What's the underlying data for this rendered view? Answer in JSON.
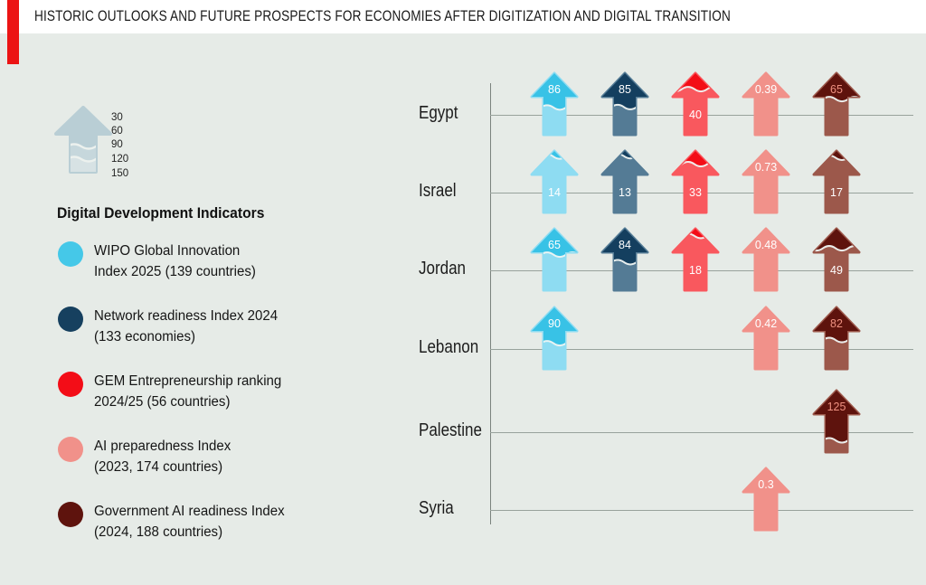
{
  "title": "HISTORIC OUTLOOKS AND FUTURE PROSPECTS FOR ECONOMIES AFTER DIGITIZATION AND DIGITAL TRANSITION",
  "colors": {
    "background": "#e6ebe7",
    "header_background": "#ffffff",
    "accent_red": "#ec1414",
    "axis_line": "#98a29c",
    "legend_arrow": "#b9ced5",
    "legend_arrow_mid": "#c6d7dc",
    "legend_arrow_low": "#d7e2e4"
  },
  "legend": {
    "heading": "Digital Development Indicators",
    "scale_labels": [
      "30",
      "60",
      "90",
      "120",
      "150"
    ],
    "items": [
      {
        "key": "wipo",
        "color": "#45c8e8",
        "line1": "WIPO Global Innovation",
        "line2": "Index 2025 (139 countries)"
      },
      {
        "key": "nri",
        "color": "#16405f",
        "line1": "Network readiness Index 2024",
        "line2": "(133 economies)"
      },
      {
        "key": "gem",
        "color": "#f30d17",
        "line1": "GEM Entrepreneurship ranking",
        "line2": "2024/25 (56 countries)"
      },
      {
        "key": "aipi",
        "color": "#f1918a",
        "line1": "AI preparedness Index",
        "line2": "(2023, 174 countries)"
      },
      {
        "key": "gari",
        "color": "#5e130d",
        "line1": "Government AI readiness Index",
        "line2": "(2024, 188 countries)"
      }
    ]
  },
  "chart_data": {
    "type": "pictogram-arrows",
    "title": "Digital Development Indicators by country",
    "categories": [
      "Egypt",
      "Israel",
      "Jordan",
      "Lebanon",
      "Palestine",
      "Syria"
    ],
    "scale_ticks": [
      30,
      60,
      90,
      120,
      150
    ],
    "legend_position": "left",
    "series": [
      {
        "key": "wipo",
        "name": "WIPO Global Innovation Index 2025 (139 countries)",
        "bright": "#38c2e6",
        "muted": "#8edcf2",
        "label_color_head": "#ffffff",
        "values": [
          86,
          14,
          65,
          90,
          null,
          null
        ],
        "label_pos": [
          "head",
          "line",
          "head",
          "head",
          null,
          null
        ]
      },
      {
        "key": "nri",
        "name": "Network readiness Index 2024 (133 economies)",
        "bright": "#143f5f",
        "muted": "#547b95",
        "label_color_head": "#ffffff",
        "values": [
          85,
          13,
          84,
          null,
          null,
          null
        ],
        "label_pos": [
          "head",
          "line",
          "head",
          null,
          null,
          null
        ]
      },
      {
        "key": "gem",
        "name": "GEM Entrepreneurship ranking 2024/25 (56 countries)",
        "bright": "#f30d17",
        "muted": "#f9585e",
        "label_color_head": "#ffffff",
        "values": [
          40,
          33,
          18,
          null,
          null,
          null
        ],
        "label_pos": [
          "line",
          "line",
          "line",
          null,
          null,
          null
        ]
      },
      {
        "key": "aipi",
        "name": "AI preparedness Index (2023, 174 countries)",
        "bright": "#f1918a",
        "muted": "#f1918a",
        "label_color_head": "#ffffff",
        "values": [
          0.39,
          0.73,
          0.48,
          0.42,
          null,
          0.3
        ],
        "label_pos": [
          "head",
          "head",
          "head",
          "head",
          null,
          "head"
        ]
      },
      {
        "key": "gari",
        "name": "Government AI readiness Index (2024, 188 countries)",
        "bright": "#5e130d",
        "muted": "#9c584b",
        "label_color_head": "#ee9181",
        "values": [
          65,
          17,
          49,
          82,
          125,
          null
        ],
        "label_pos": [
          "head",
          "line",
          "line",
          "head",
          "head",
          null
        ]
      }
    ]
  }
}
